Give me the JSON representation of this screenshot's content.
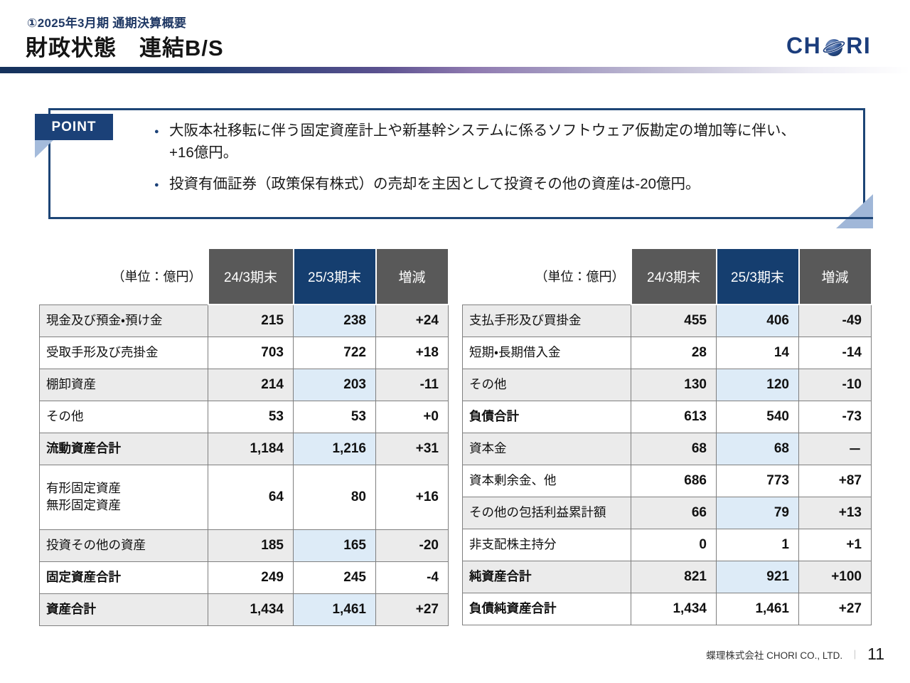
{
  "header": {
    "eyebrow": "①2025年3月期 通期決算概要",
    "title": "財政状態　連結B/S",
    "logo_left": "CH",
    "logo_right": "RI"
  },
  "point": {
    "label": "POINT",
    "bullets": [
      "大阪本社移転に伴う固定資産計上や新基幹システムに係るソフトウェア仮勘定の増加等に伴い、\n+16億円。",
      "投資有価証券（政策保有株式）の売却を主因として投資その他の資産は-20億円。"
    ]
  },
  "tables": {
    "unit_label": "（単位：億円）",
    "columns": [
      "24/3期末",
      "25/3期末",
      "増減"
    ],
    "left_rows": [
      {
        "label": "現金及び預金・預け金",
        "values": [
          "215",
          "238",
          "+24"
        ],
        "bold": false,
        "shaded": true,
        "tall": false
      },
      {
        "label": "受取手形及び売掛金",
        "values": [
          "703",
          "722",
          "+18"
        ],
        "bold": false,
        "shaded": false,
        "tall": false
      },
      {
        "label": "棚卸資産",
        "values": [
          "214",
          "203",
          "-11"
        ],
        "bold": false,
        "shaded": true,
        "tall": false
      },
      {
        "label": "その他",
        "values": [
          "53",
          "53",
          "+0"
        ],
        "bold": false,
        "shaded": false,
        "tall": false
      },
      {
        "label": "流動資産合計",
        "values": [
          "1,184",
          "1,216",
          "+31"
        ],
        "bold": true,
        "shaded": true,
        "tall": false
      },
      {
        "label": "有形固定資産\n無形固定資産",
        "values": [
          "64",
          "80",
          "+16"
        ],
        "bold": false,
        "shaded": false,
        "tall": true
      },
      {
        "label": "投資その他の資産",
        "values": [
          "185",
          "165",
          "-20"
        ],
        "bold": false,
        "shaded": true,
        "tall": false
      },
      {
        "label": "固定資産合計",
        "values": [
          "249",
          "245",
          "-4"
        ],
        "bold": true,
        "shaded": false,
        "tall": false
      },
      {
        "label": "資産合計",
        "values": [
          "1,434",
          "1,461",
          "+27"
        ],
        "bold": true,
        "shaded": true,
        "tall": false
      }
    ],
    "right_rows": [
      {
        "label": "支払手形及び買掛金",
        "values": [
          "455",
          "406",
          "-49"
        ],
        "bold": false,
        "shaded": true,
        "tall": false
      },
      {
        "label": "短期・長期借入金",
        "values": [
          "28",
          "14",
          "-14"
        ],
        "bold": false,
        "shaded": false,
        "tall": false
      },
      {
        "label": "その他",
        "values": [
          "130",
          "120",
          "-10"
        ],
        "bold": false,
        "shaded": true,
        "tall": false
      },
      {
        "label": "負債合計",
        "values": [
          "613",
          "540",
          "-73"
        ],
        "bold": true,
        "shaded": false,
        "tall": false
      },
      {
        "label": "資本金",
        "values": [
          "68",
          "68",
          "－"
        ],
        "bold": false,
        "shaded": true,
        "tall": false
      },
      {
        "label": "資本剰余金、他",
        "values": [
          "686",
          "773",
          "+87"
        ],
        "bold": false,
        "shaded": false,
        "tall": false
      },
      {
        "label": "その他の包括利益累計額",
        "values": [
          "66",
          "79",
          "+13"
        ],
        "bold": false,
        "shaded": true,
        "tall": false
      },
      {
        "label": "非支配株主持分",
        "values": [
          "0",
          "1",
          "+1"
        ],
        "bold": false,
        "shaded": false,
        "tall": false
      },
      {
        "label": "純資産合計",
        "values": [
          "821",
          "921",
          "+100"
        ],
        "bold": true,
        "shaded": true,
        "tall": false
      },
      {
        "label": "負債純資産合計",
        "values": [
          "1,434",
          "1,461",
          "+27"
        ],
        "bold": true,
        "shaded": false,
        "tall": false
      }
    ]
  },
  "footer": {
    "company": "蝶理株式会社 CHORI CO., LTD.",
    "separator": "｜",
    "page": "11"
  },
  "colors": {
    "brand_navy": "#1b3d7c",
    "heading_navy": "#1f3864",
    "header_cell_gray": "#595959",
    "header_cell_navy": "#153e6f",
    "row_shade_gray": "#ebebeb",
    "highlight_blue": "#ddebf7",
    "point_border_navy": "#1d4576",
    "fold_light_blue": "#a4bbdb"
  }
}
